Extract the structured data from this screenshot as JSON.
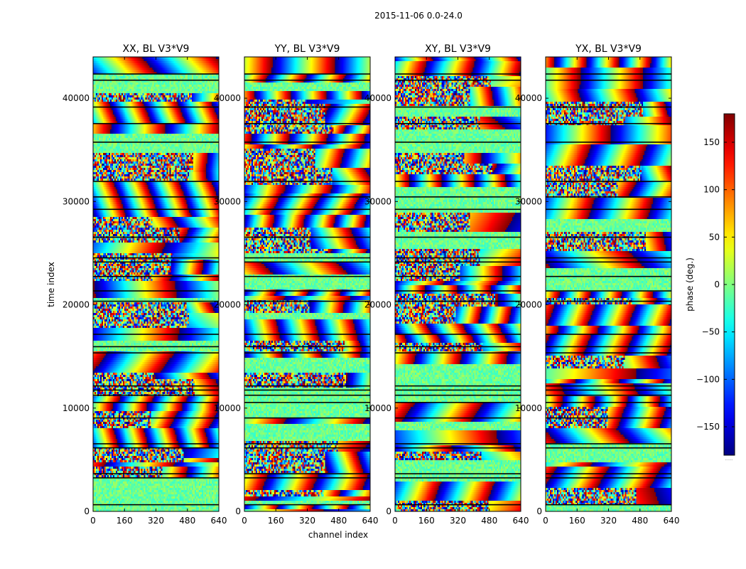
{
  "chart_data": {
    "type": "heatmap",
    "suptitle": "2015-11-06 0.0-24.0",
    "xlabel": "channel index",
    "ylabel": "time index",
    "xlim": [
      0,
      640
    ],
    "ylim": [
      0,
      44000
    ],
    "xticks": [
      0,
      160,
      320,
      480,
      640
    ],
    "yticks": [
      0,
      10000,
      20000,
      30000,
      40000
    ],
    "colormap": "jet",
    "colorbar": {
      "label": "phase (deg.)",
      "range": [
        -180,
        180
      ],
      "ticks": [
        -150,
        -100,
        -50,
        0,
        50,
        100,
        150
      ]
    },
    "panels": [
      {
        "title": "XX, BL V3*V9",
        "seed": 11
      },
      {
        "title": "YY, BL V3*V9",
        "seed": 23
      },
      {
        "title": "XY, BL V3*V9",
        "seed": 37
      },
      {
        "title": "YX, BL V3*V9",
        "seed": 51
      }
    ],
    "gap_rows_time_index": [
      700,
      3300,
      3700,
      6200,
      6600,
      9100,
      10600,
      11300,
      11800,
      12200,
      15400,
      16000,
      17200,
      20400,
      21400,
      22800,
      24200,
      24600,
      26600,
      29300,
      30500,
      32000,
      35800,
      37600,
      39200,
      41800,
      42400
    ]
  },
  "figure": {
    "tick_minus": "−",
    "colorbar_note": "......"
  }
}
